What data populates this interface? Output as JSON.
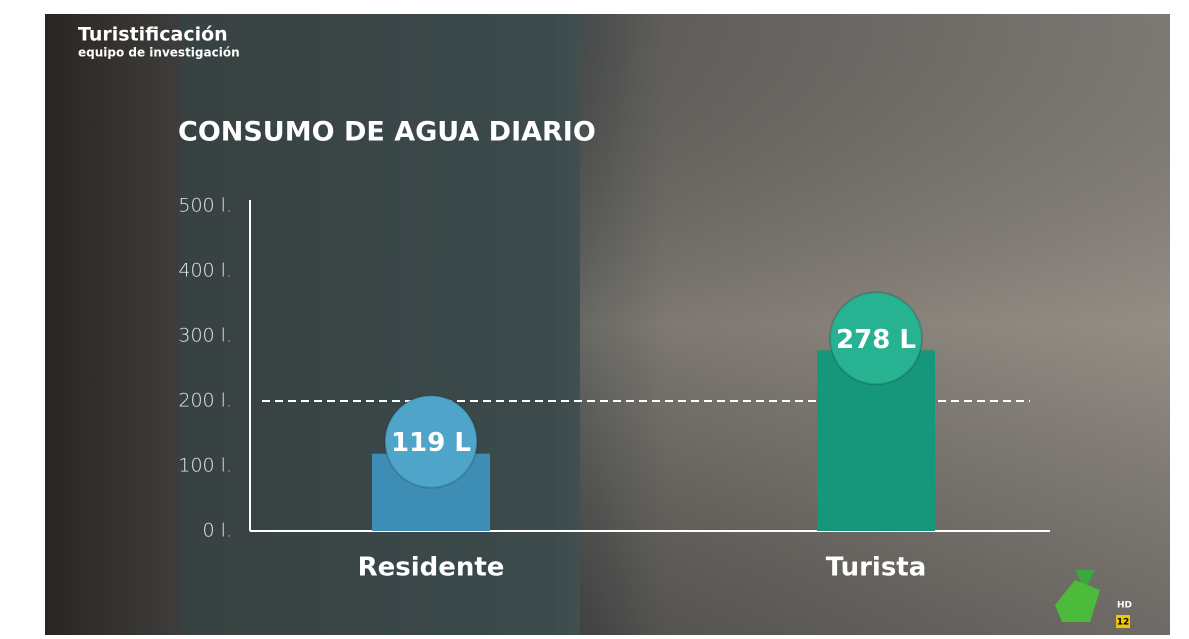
{
  "overlay": {
    "program": "Turistificación",
    "section": "equipo de investigación",
    "badge_hd": "HD",
    "badge_age": "12"
  },
  "chart_data": {
    "type": "bar",
    "title": "CONSUMO DE AGUA DIARIO",
    "categories": [
      "Residente",
      "Turista"
    ],
    "values": [
      119,
      278
    ],
    "value_labels": [
      "119 L",
      "278 L"
    ],
    "colors": [
      "#3d8db5",
      "#16977c"
    ],
    "label_colors": [
      "#4fa4c9",
      "#27b291"
    ],
    "ylim": [
      0,
      500
    ],
    "yticks": [
      {
        "value": 0,
        "label": "0 l."
      },
      {
        "value": 100,
        "label": "100 l."
      },
      {
        "value": 200,
        "label": "200 l."
      },
      {
        "value": 300,
        "label": "300 l."
      },
      {
        "value": 400,
        "label": "400 l."
      },
      {
        "value": 500,
        "label": "500 l."
      }
    ],
    "reference_line": 200
  }
}
